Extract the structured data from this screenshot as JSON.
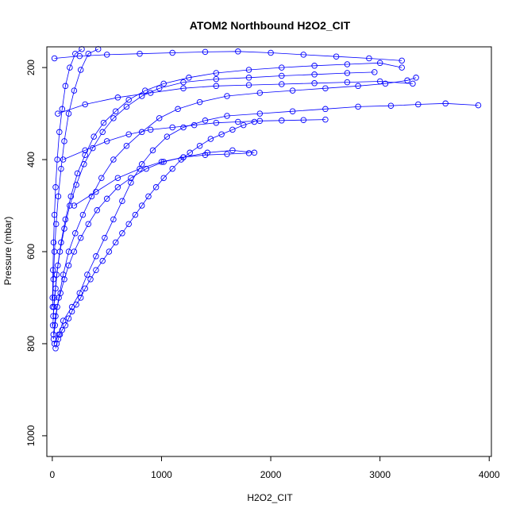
{
  "chart_data": {
    "type": "scatter",
    "title": "ATOM2 Northbound H2O2_CIT",
    "xlabel": "H2O2_CIT",
    "ylabel": "Pressure (mbar)",
    "xlim": [
      -50,
      4020
    ],
    "ylim": [
      1045,
      155
    ],
    "y_reversed": true,
    "x_ticks": [
      0,
      1000,
      2000,
      3000,
      4000
    ],
    "y_ticks": [
      200,
      400,
      600,
      800,
      1000
    ],
    "grid": false,
    "legend": "none",
    "marker": "open-circle",
    "connect_points": true,
    "color": "#0000ff",
    "series": [
      {
        "values_xy": [
          [
            30,
            810
          ],
          [
            40,
            800
          ],
          [
            55,
            790
          ],
          [
            70,
            780
          ],
          [
            90,
            770
          ],
          [
            120,
            760
          ],
          [
            150,
            745
          ],
          [
            180,
            730
          ],
          [
            220,
            715
          ],
          [
            260,
            700
          ],
          [
            300,
            680
          ],
          [
            350,
            660
          ],
          [
            400,
            640
          ],
          [
            460,
            620
          ],
          [
            520,
            600
          ],
          [
            580,
            580
          ],
          [
            640,
            560
          ],
          [
            700,
            540
          ],
          [
            760,
            520
          ],
          [
            820,
            500
          ],
          [
            880,
            480
          ],
          [
            950,
            460
          ],
          [
            1020,
            440
          ],
          [
            1100,
            420
          ],
          [
            1180,
            400
          ],
          [
            1260,
            385
          ],
          [
            1350,
            370
          ],
          [
            1450,
            355
          ],
          [
            1550,
            345
          ],
          [
            1650,
            335
          ],
          [
            1750,
            325
          ],
          [
            1850,
            318
          ]
        ]
      },
      {
        "values_xy": [
          [
            20,
            800
          ],
          [
            60,
            780
          ],
          [
            100,
            750
          ],
          [
            180,
            720
          ],
          [
            250,
            690
          ],
          [
            320,
            650
          ],
          [
            400,
            610
          ],
          [
            480,
            570
          ],
          [
            560,
            530
          ],
          [
            640,
            490
          ],
          [
            720,
            450
          ],
          [
            820,
            410
          ],
          [
            920,
            380
          ],
          [
            1050,
            350
          ],
          [
            1200,
            330
          ],
          [
            1400,
            315
          ],
          [
            1600,
            305
          ],
          [
            1900,
            300
          ],
          [
            2200,
            295
          ],
          [
            2500,
            290
          ],
          [
            2800,
            285
          ],
          [
            3100,
            283
          ],
          [
            3350,
            280
          ],
          [
            3600,
            278
          ],
          [
            3900,
            282
          ]
        ]
      },
      {
        "values_xy": [
          [
            10,
            780
          ],
          [
            30,
            740
          ],
          [
            60,
            700
          ],
          [
            100,
            650
          ],
          [
            150,
            600
          ],
          [
            210,
            560
          ],
          [
            280,
            520
          ],
          [
            360,
            480
          ],
          [
            450,
            440
          ],
          [
            560,
            400
          ],
          [
            680,
            370
          ],
          [
            820,
            340
          ],
          [
            980,
            310
          ],
          [
            1150,
            290
          ],
          [
            1350,
            275
          ],
          [
            1600,
            262
          ],
          [
            1900,
            255
          ],
          [
            2200,
            250
          ],
          [
            2500,
            245
          ],
          [
            2800,
            240
          ],
          [
            3050,
            235
          ],
          [
            3250,
            228
          ],
          [
            3330,
            222
          ]
        ]
      },
      {
        "values_xy": [
          [
            5,
            760
          ],
          [
            15,
            720
          ],
          [
            30,
            680
          ],
          [
            50,
            630
          ],
          [
            80,
            580
          ],
          [
            120,
            530
          ],
          [
            170,
            480
          ],
          [
            230,
            430
          ],
          [
            300,
            390
          ],
          [
            380,
            350
          ],
          [
            470,
            320
          ],
          [
            580,
            295
          ],
          [
            700,
            270
          ],
          [
            850,
            250
          ],
          [
            1020,
            235
          ],
          [
            1250,
            222
          ],
          [
            1500,
            212
          ],
          [
            1800,
            205
          ],
          [
            2100,
            200
          ],
          [
            2400,
            196
          ],
          [
            2700,
            193
          ],
          [
            3000,
            190
          ],
          [
            3200,
            200
          ]
        ]
      },
      {
        "values_xy": [
          [
            8,
            740
          ],
          [
            20,
            700
          ],
          [
            40,
            650
          ],
          [
            70,
            600
          ],
          [
            110,
            550
          ],
          [
            160,
            500
          ],
          [
            220,
            455
          ],
          [
            290,
            410
          ],
          [
            370,
            375
          ],
          [
            460,
            340
          ],
          [
            560,
            310
          ],
          [
            680,
            285
          ],
          [
            820,
            262
          ],
          [
            980,
            245
          ],
          [
            1200,
            232
          ],
          [
            1500,
            225
          ],
          [
            1800,
            222
          ],
          [
            2100,
            218
          ],
          [
            2400,
            215
          ],
          [
            2700,
            212
          ],
          [
            2950,
            210
          ]
        ]
      },
      {
        "values_xy": [
          [
            12,
            790
          ],
          [
            25,
            760
          ],
          [
            45,
            720
          ],
          [
            75,
            690
          ],
          [
            110,
            660
          ],
          [
            150,
            630
          ],
          [
            200,
            600
          ],
          [
            260,
            570
          ],
          [
            330,
            540
          ],
          [
            410,
            510
          ],
          [
            500,
            485
          ],
          [
            600,
            460
          ],
          [
            720,
            440
          ],
          [
            860,
            420
          ],
          [
            1020,
            405
          ],
          [
            1200,
            395
          ],
          [
            1420,
            385
          ],
          [
            1650,
            380
          ],
          [
            1850,
            385
          ]
        ]
      },
      {
        "values_xy": [
          [
            3,
            720
          ],
          [
            10,
            660
          ],
          [
            20,
            600
          ],
          [
            35,
            540
          ],
          [
            55,
            480
          ],
          [
            80,
            420
          ],
          [
            110,
            360
          ],
          [
            150,
            300
          ],
          [
            200,
            250
          ],
          [
            260,
            205
          ],
          [
            330,
            170
          ],
          [
            420,
            160
          ]
        ]
      },
      {
        "values_xy": [
          [
            2,
            700
          ],
          [
            6,
            640
          ],
          [
            12,
            580
          ],
          [
            20,
            520
          ],
          [
            30,
            460
          ],
          [
            45,
            400
          ],
          [
            65,
            340
          ],
          [
            90,
            290
          ],
          [
            120,
            240
          ],
          [
            160,
            200
          ],
          [
            210,
            170
          ],
          [
            270,
            160
          ]
        ]
      },
      {
        "values_xy": [
          [
            100,
            400
          ],
          [
            300,
            380
          ],
          [
            500,
            360
          ],
          [
            700,
            345
          ],
          [
            900,
            335
          ],
          [
            1100,
            330
          ],
          [
            1300,
            325
          ],
          [
            1500,
            320
          ],
          [
            1700,
            318
          ],
          [
            1900,
            316
          ],
          [
            2100,
            315
          ],
          [
            2300,
            314
          ],
          [
            2500,
            313
          ]
        ]
      },
      {
        "values_xy": [
          [
            200,
            500
          ],
          [
            400,
            470
          ],
          [
            600,
            440
          ],
          [
            800,
            420
          ],
          [
            1000,
            405
          ],
          [
            1200,
            395
          ],
          [
            1400,
            390
          ],
          [
            1600,
            388
          ],
          [
            1800,
            386
          ]
        ]
      },
      {
        "values_xy": [
          [
            50,
            300
          ],
          [
            300,
            280
          ],
          [
            600,
            265
          ],
          [
            900,
            255
          ],
          [
            1200,
            245
          ],
          [
            1500,
            240
          ],
          [
            1800,
            238
          ],
          [
            2100,
            236
          ],
          [
            2400,
            234
          ],
          [
            2700,
            232
          ],
          [
            3000,
            230
          ],
          [
            3300,
            235
          ]
        ]
      },
      {
        "values_xy": [
          [
            20,
            180
          ],
          [
            250,
            175
          ],
          [
            500,
            172
          ],
          [
            800,
            170
          ],
          [
            1100,
            168
          ],
          [
            1400,
            166
          ],
          [
            1700,
            165
          ],
          [
            2000,
            168
          ],
          [
            2300,
            172
          ],
          [
            2600,
            176
          ],
          [
            2900,
            180
          ],
          [
            3200,
            185
          ]
        ]
      }
    ]
  }
}
